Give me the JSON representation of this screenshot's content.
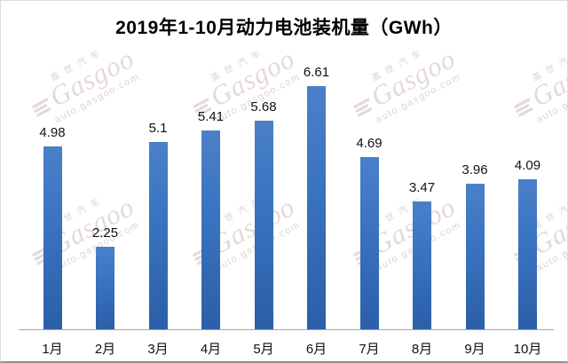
{
  "page": {
    "title": "2019年1-10月动力电池装机量（GWh）"
  },
  "watermark": {
    "brand_cn": "盖世汽车",
    "brand_en": "Gasgoo",
    "url": "auto.gasgoo.com",
    "logo_icon": "gasgoo-logo-icon",
    "color": "#e2d6d6"
  },
  "colors": {
    "bar_gradient_top": "#4a80c9",
    "bar_gradient_bottom": "#2b5fa8",
    "axis_line": "#a6a6a6",
    "title_text": "#000000",
    "label_text": "#111111",
    "frame_border": "#dcdcdc",
    "frame_border_bottom": "#8f8f8f"
  },
  "chart_data": {
    "type": "bar",
    "title": "2019年1-10月动力电池装机量（GWh）",
    "categories": [
      "1月",
      "2月",
      "3月",
      "4月",
      "5月",
      "6月",
      "7月",
      "8月",
      "9月",
      "10月"
    ],
    "values": [
      4.98,
      2.25,
      5.1,
      5.41,
      5.68,
      6.61,
      4.69,
      3.47,
      3.96,
      4.09
    ],
    "series_name": "动力电池装机量",
    "unit": "GWh",
    "xlabel": "",
    "ylabel": "",
    "ylim": [
      0,
      7
    ],
    "grid": false,
    "legend": "none",
    "data_labels": true,
    "bar_color": "#3a74c0"
  }
}
